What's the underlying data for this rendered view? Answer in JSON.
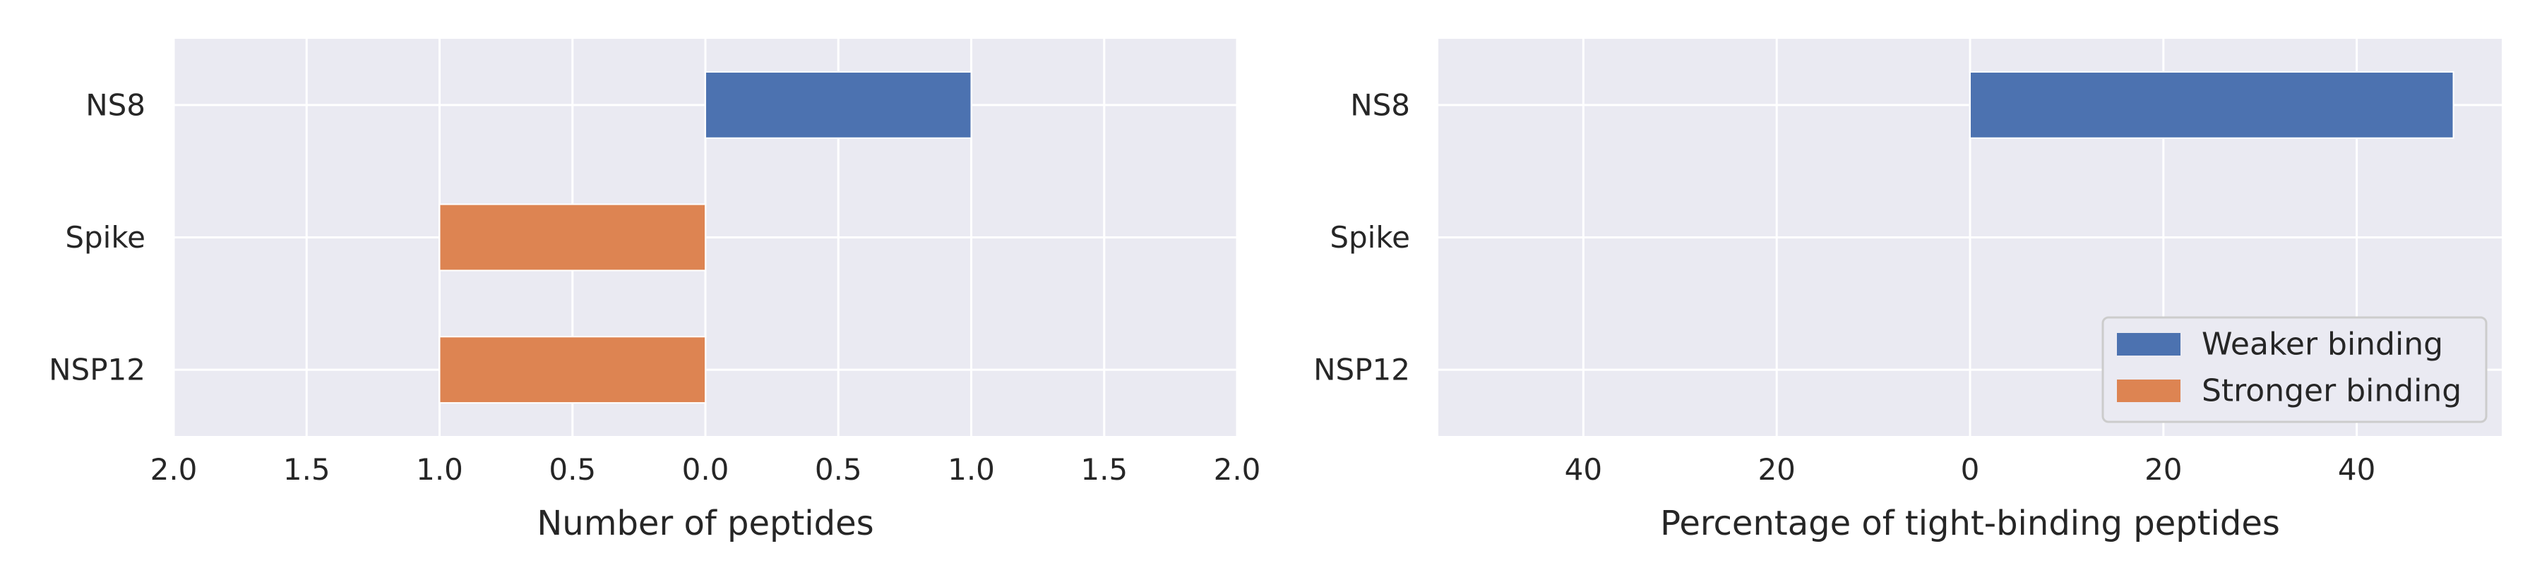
{
  "chart_data": [
    {
      "type": "bar",
      "orientation": "horizontal",
      "categories": [
        "NS8",
        "Spike",
        "NSP12"
      ],
      "series": [
        {
          "name": "Weaker binding",
          "values": [
            1,
            0,
            0
          ]
        },
        {
          "name": "Stronger binding",
          "values": [
            0,
            -1,
            -1
          ]
        }
      ],
      "xlabel": "Number of peptides",
      "xlim": [
        -2,
        2
      ],
      "xticks": [
        -2,
        -1.5,
        -1,
        -0.5,
        0,
        0.5,
        1,
        1.5,
        2
      ],
      "xtick_labels": [
        "2.0",
        "1.5",
        "1.0",
        "0.5",
        "0.0",
        "0.5",
        "1.0",
        "1.5",
        "2.0"
      ],
      "grid": true
    },
    {
      "type": "bar",
      "orientation": "horizontal",
      "categories": [
        "NS8",
        "Spike",
        "NSP12"
      ],
      "series": [
        {
          "name": "Weaker binding",
          "values": [
            50,
            0,
            0
          ]
        },
        {
          "name": "Stronger binding",
          "values": [
            0,
            0,
            0
          ]
        }
      ],
      "xlabel": "Percentage of tight-binding peptides",
      "xlim": [
        -55,
        55
      ],
      "xticks": [
        -40,
        -20,
        0,
        20,
        40
      ],
      "xtick_labels": [
        "40",
        "20",
        "0",
        "20",
        "40"
      ],
      "grid": true,
      "legend": {
        "position": "bottom-right",
        "entries": [
          "Weaker binding",
          "Stronger binding"
        ]
      }
    }
  ],
  "colors": {
    "weaker": "#4c72b0",
    "stronger": "#dd8452",
    "plot_background": "#eaeaf2",
    "grid": "#ffffff"
  }
}
